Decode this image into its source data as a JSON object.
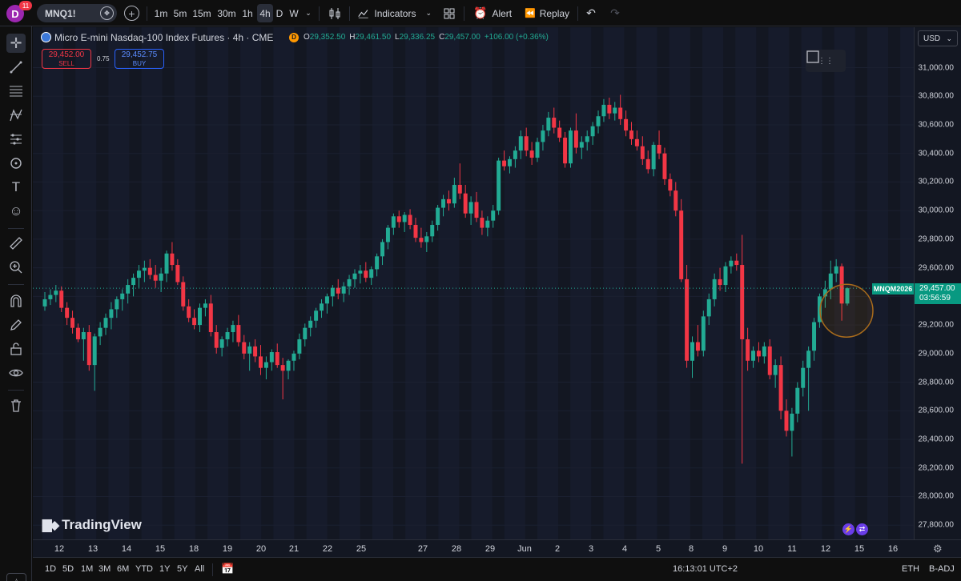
{
  "user": {
    "avatar_letter": "D",
    "notifications": "11"
  },
  "header": {
    "symbol": "MNQ1!",
    "intervals": [
      "1m",
      "5m",
      "15m",
      "30m",
      "1h",
      "4h",
      "D",
      "W"
    ],
    "active_interval": "4h",
    "indicators_label": "Indicators",
    "alert_label": "Alert",
    "replay_label": "Replay"
  },
  "legend": {
    "title": "Micro E-mini Nasdaq-100 Index Futures · 4h · CME",
    "d_badge": "D",
    "open_key": "O",
    "open": "29,352.50",
    "high_key": "H",
    "high": "29,461.50",
    "low_key": "L",
    "low": "29,336.25",
    "close_key": "C",
    "close": "29,457.00",
    "change": "+106.00 (+0.36%)"
  },
  "trade": {
    "sell_price": "29,452.00",
    "sell_label": "SELL",
    "spread": "0.75",
    "buy_price": "29,452.75",
    "buy_label": "BUY"
  },
  "price_axis": {
    "currency": "USD",
    "ticks": [
      "31,000.00",
      "30,800.00",
      "30,600.00",
      "30,400.00",
      "30,200.00",
      "30,000.00",
      "29,800.00",
      "29,600.00",
      "29,400.00",
      "29,200.00",
      "29,000.00",
      "28,800.00",
      "28,600.00",
      "28,400.00",
      "28,200.00",
      "28,000.00",
      "27,800.00"
    ],
    "current_price": "29,457.00",
    "countdown": "03:56:59",
    "contract_tag": "MNQM2026"
  },
  "time_axis": {
    "ticks": [
      "12",
      "13",
      "14",
      "15",
      "18",
      "19",
      "20",
      "21",
      "22",
      "25",
      "27",
      "28",
      "29",
      "Jun",
      "2",
      "3",
      "4",
      "5",
      "8",
      "9",
      "10",
      "11",
      "12",
      "15",
      "16"
    ]
  },
  "bottom": {
    "ranges": [
      "1D",
      "5D",
      "1M",
      "3M",
      "6M",
      "YTD",
      "1Y",
      "5Y",
      "All"
    ],
    "clock": "16:13:01 UTC+2",
    "session": "ETH",
    "adjust": "B-ADJ"
  },
  "branding": {
    "logo_text": "TradingView"
  },
  "colors": {
    "up": "#22ab94",
    "down": "#f23645",
    "background": "#131722",
    "accent": "#2962ff"
  },
  "chart_data": {
    "type": "candlestick",
    "symbol": "MNQ1!",
    "interval": "4h",
    "ylim": [
      27700,
      31150
    ],
    "x_tick_labels": [
      "12",
      "13",
      "14",
      "15",
      "18",
      "19",
      "20",
      "21",
      "22",
      "25",
      "27",
      "28",
      "29",
      "Jun",
      "2",
      "3",
      "4",
      "5",
      "8",
      "9",
      "10",
      "11",
      "12",
      "15",
      "16"
    ],
    "candles": [
      [
        29330,
        29430,
        29300,
        29380
      ],
      [
        29380,
        29450,
        29340,
        29410
      ],
      [
        29410,
        29480,
        29360,
        29440
      ],
      [
        29440,
        29470,
        29290,
        29320
      ],
      [
        29320,
        29360,
        29200,
        29250
      ],
      [
        29250,
        29300,
        29140,
        29180
      ],
      [
        29180,
        29210,
        29080,
        29100
      ],
      [
        29100,
        29180,
        28950,
        29150
      ],
      [
        29150,
        29200,
        28880,
        28920
      ],
      [
        28920,
        29140,
        28740,
        29120
      ],
      [
        29120,
        29220,
        29060,
        29180
      ],
      [
        29180,
        29280,
        29130,
        29250
      ],
      [
        29250,
        29360,
        29170,
        29310
      ],
      [
        29310,
        29400,
        29250,
        29380
      ],
      [
        29380,
        29450,
        29300,
        29420
      ],
      [
        29420,
        29520,
        29350,
        29480
      ],
      [
        29480,
        29560,
        29400,
        29530
      ],
      [
        29530,
        29620,
        29460,
        29580
      ],
      [
        29580,
        29650,
        29500,
        29600
      ],
      [
        29600,
        29660,
        29520,
        29550
      ],
      [
        29550,
        29620,
        29460,
        29510
      ],
      [
        29510,
        29600,
        29430,
        29560
      ],
      [
        29560,
        29720,
        29500,
        29700
      ],
      [
        29700,
        29780,
        29580,
        29620
      ],
      [
        29620,
        29660,
        29480,
        29500
      ],
      [
        29500,
        29540,
        29300,
        29330
      ],
      [
        29330,
        29380,
        29220,
        29250
      ],
      [
        29250,
        29310,
        29170,
        29200
      ],
      [
        29200,
        29350,
        29150,
        29320
      ],
      [
        29320,
        29380,
        29260,
        29350
      ],
      [
        29350,
        29410,
        29120,
        29150
      ],
      [
        29150,
        29200,
        29000,
        29040
      ],
      [
        29040,
        29120,
        28980,
        29100
      ],
      [
        29100,
        29180,
        29050,
        29150
      ],
      [
        29150,
        29230,
        29080,
        29200
      ],
      [
        29200,
        29270,
        29050,
        29080
      ],
      [
        29080,
        29130,
        28960,
        29000
      ],
      [
        29000,
        29080,
        28880,
        29050
      ],
      [
        29050,
        29100,
        28940,
        28980
      ],
      [
        28980,
        29060,
        28850,
        28900
      ],
      [
        28900,
        28980,
        28820,
        28940
      ],
      [
        28940,
        29030,
        28880,
        29010
      ],
      [
        29010,
        29070,
        28900,
        28920
      ],
      [
        28920,
        28970,
        28680,
        28880
      ],
      [
        28880,
        28960,
        28820,
        28950
      ],
      [
        28950,
        29020,
        28880,
        29000
      ],
      [
        29000,
        29140,
        28960,
        29100
      ],
      [
        29100,
        29210,
        29050,
        29180
      ],
      [
        29180,
        29260,
        29120,
        29230
      ],
      [
        29230,
        29320,
        29180,
        29300
      ],
      [
        29300,
        29380,
        29250,
        29350
      ],
      [
        29350,
        29420,
        29280,
        29400
      ],
      [
        29400,
        29480,
        29330,
        29460
      ],
      [
        29460,
        29520,
        29380,
        29420
      ],
      [
        29420,
        29500,
        29360,
        29470
      ],
      [
        29470,
        29550,
        29410,
        29520
      ],
      [
        29520,
        29590,
        29460,
        29560
      ],
      [
        29560,
        29620,
        29490,
        29580
      ],
      [
        29580,
        29640,
        29500,
        29530
      ],
      [
        29530,
        29610,
        29480,
        29590
      ],
      [
        29590,
        29700,
        29540,
        29680
      ],
      [
        29680,
        29800,
        29620,
        29780
      ],
      [
        29780,
        29900,
        29730,
        29880
      ],
      [
        29880,
        29980,
        29830,
        29960
      ],
      [
        29960,
        30000,
        29880,
        29920
      ],
      [
        29920,
        29990,
        29850,
        29970
      ],
      [
        29970,
        30010,
        29870,
        29900
      ],
      [
        29900,
        29950,
        29780,
        29810
      ],
      [
        29810,
        29880,
        29740,
        29780
      ],
      [
        29780,
        29850,
        29710,
        29820
      ],
      [
        29820,
        29930,
        29780,
        29900
      ],
      [
        29900,
        30040,
        29860,
        30020
      ],
      [
        30020,
        30110,
        29960,
        30080
      ],
      [
        30080,
        30140,
        30000,
        30050
      ],
      [
        30050,
        30230,
        30020,
        30180
      ],
      [
        30180,
        30330,
        30080,
        30120
      ],
      [
        30120,
        30180,
        29950,
        29980
      ],
      [
        29980,
        30100,
        29900,
        30060
      ],
      [
        30060,
        30130,
        29920,
        29950
      ],
      [
        29950,
        30000,
        29830,
        29880
      ],
      [
        29880,
        29960,
        29820,
        29930
      ],
      [
        29930,
        30040,
        29880,
        30000
      ],
      [
        30000,
        30370,
        29970,
        30350
      ],
      [
        30350,
        30420,
        30280,
        30310
      ],
      [
        30310,
        30380,
        30260,
        30360
      ],
      [
        30360,
        30450,
        30300,
        30420
      ],
      [
        30420,
        30560,
        30360,
        30520
      ],
      [
        30520,
        30580,
        30380,
        30420
      ],
      [
        30420,
        30480,
        30320,
        30370
      ],
      [
        30370,
        30510,
        30340,
        30480
      ],
      [
        30480,
        30600,
        30420,
        30560
      ],
      [
        30560,
        30690,
        30520,
        30650
      ],
      [
        30650,
        30720,
        30540,
        30580
      ],
      [
        30580,
        30630,
        30480,
        30510
      ],
      [
        30510,
        30550,
        30300,
        30330
      ],
      [
        30330,
        30580,
        30300,
        30560
      ],
      [
        30560,
        30680,
        30400,
        30440
      ],
      [
        30440,
        30520,
        30360,
        30480
      ],
      [
        30480,
        30560,
        30420,
        30520
      ],
      [
        30520,
        30620,
        30460,
        30590
      ],
      [
        30590,
        30700,
        30540,
        30660
      ],
      [
        30660,
        30780,
        30620,
        30740
      ],
      [
        30740,
        30790,
        30640,
        30680
      ],
      [
        30680,
        30760,
        30630,
        30720
      ],
      [
        30720,
        30810,
        30600,
        30640
      ],
      [
        30640,
        30700,
        30520,
        30560
      ],
      [
        30560,
        30620,
        30460,
        30500
      ],
      [
        30500,
        30560,
        30420,
        30450
      ],
      [
        30450,
        30520,
        30320,
        30360
      ],
      [
        30360,
        30420,
        30260,
        30290
      ],
      [
        30290,
        30480,
        30240,
        30460
      ],
      [
        30460,
        30560,
        30360,
        30400
      ],
      [
        30400,
        30440,
        30180,
        30220
      ],
      [
        30220,
        30260,
        30100,
        30140
      ],
      [
        30140,
        30200,
        29960,
        30000
      ],
      [
        30000,
        30080,
        29500,
        29520
      ],
      [
        29520,
        29620,
        28900,
        28950
      ],
      [
        28950,
        29120,
        28830,
        29080
      ],
      [
        29080,
        29200,
        28980,
        29020
      ],
      [
        29020,
        29300,
        28980,
        29260
      ],
      [
        29260,
        29420,
        29200,
        29380
      ],
      [
        29380,
        29560,
        29330,
        29520
      ],
      [
        29520,
        29600,
        29440,
        29480
      ],
      [
        29480,
        29640,
        29430,
        29610
      ],
      [
        29610,
        29680,
        29560,
        29650
      ],
      [
        29650,
        29700,
        29580,
        29620
      ],
      [
        29620,
        29830,
        28230,
        29100
      ],
      [
        29100,
        29180,
        28880,
        28950
      ],
      [
        28950,
        29050,
        28900,
        29020
      ],
      [
        29020,
        29080,
        28940,
        28980
      ],
      [
        28980,
        29080,
        28930,
        29050
      ],
      [
        29050,
        29100,
        28820,
        28850
      ],
      [
        28850,
        28960,
        28760,
        28920
      ],
      [
        28920,
        28980,
        28540,
        28600
      ],
      [
        28600,
        28680,
        28420,
        28460
      ],
      [
        28460,
        28620,
        28280,
        28580
      ],
      [
        28580,
        28800,
        28520,
        28760
      ],
      [
        28760,
        28950,
        28700,
        28900
      ],
      [
        28900,
        29050,
        28600,
        29020
      ],
      [
        29020,
        29250,
        28950,
        29220
      ],
      [
        29220,
        29420,
        29180,
        29400
      ],
      [
        29400,
        29510,
        29320,
        29450
      ],
      [
        29450,
        29650,
        29380,
        29560
      ],
      [
        29560,
        29660,
        29500,
        29610
      ],
      [
        29610,
        29630,
        29230,
        29350
      ],
      [
        29350,
        29462,
        29336,
        29457
      ]
    ]
  }
}
